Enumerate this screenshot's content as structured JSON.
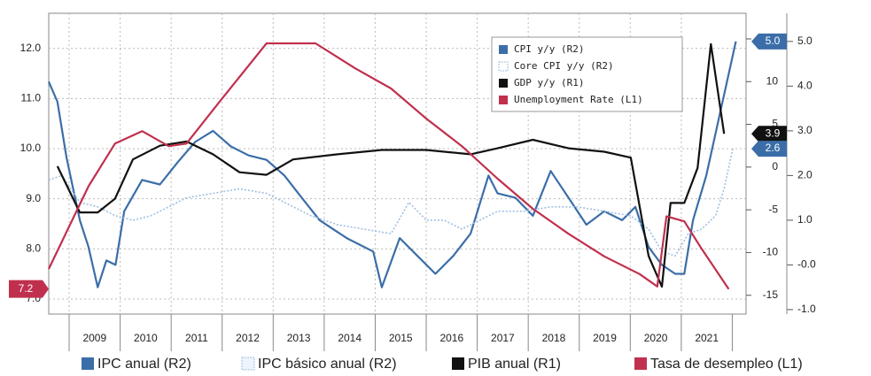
{
  "chart_data": {
    "type": "line",
    "categories": [
      "2009",
      "2010",
      "2011",
      "2012",
      "2013",
      "2014",
      "2015",
      "2016",
      "2017",
      "2018",
      "2019",
      "2020",
      "2021"
    ],
    "xlim": [
      2008.6,
      2022.27
    ],
    "ylim": [
      6.7,
      12.7
    ],
    "yticks": [
      {
        "value": 7,
        "label": "7.0"
      },
      {
        "value": 8,
        "label": "8.0"
      },
      {
        "value": 9,
        "label": "9.0"
      },
      {
        "value": 10,
        "label": "10.0"
      },
      {
        "value": 11,
        "label": "11.0"
      },
      {
        "value": 12,
        "label": "12.0"
      }
    ],
    "y2lim": [
      -17.2,
      18
    ],
    "y2ticks": [
      15,
      10,
      5,
      0,
      -5,
      -10,
      -15
    ],
    "y3lim": [
      -1.1,
      5.63
    ],
    "y3ticks": [
      {
        "value": 5,
        "label": "5.0"
      },
      {
        "value": 4,
        "label": "4.0"
      },
      {
        "value": 3,
        "label": "3.0"
      },
      {
        "value": 2,
        "label": "2.0"
      },
      {
        "value": 1,
        "label": "1.0"
      },
      {
        "value": 0,
        "label": "-0.0"
      },
      {
        "value": -1,
        "label": "-1.0"
      }
    ],
    "grid": true,
    "series": [
      {
        "name": "CPI y/y (R2)",
        "color": "#3b6ea8",
        "axis": "y3",
        "x": [
          2008.6,
          2008.77,
          2008.95,
          2009.21,
          2009.38,
          2009.56,
          2009.73,
          2009.91,
          2010.08,
          2010.43,
          2010.78,
          2011.13,
          2011.47,
          2011.82,
          2012.17,
          2012.52,
          2012.87,
          2013.22,
          2013.56,
          2013.91,
          2014.44,
          2014.96,
          2015.13,
          2015.48,
          2015.83,
          2016.18,
          2016.53,
          2016.87,
          2017.22,
          2017.4,
          2017.75,
          2018.09,
          2018.44,
          2018.79,
          2019.14,
          2019.49,
          2019.84,
          2020.1,
          2020.36,
          2020.62,
          2020.88,
          2021.06,
          2021.23,
          2021.49,
          2021.75,
          2022.07
        ],
        "values": [
          4.1,
          3.65,
          2.4,
          1.0,
          0.4,
          -0.5,
          0.1,
          0.0,
          1.2,
          1.9,
          1.8,
          2.3,
          2.75,
          3.0,
          2.65,
          2.45,
          2.35,
          2.0,
          1.5,
          1.0,
          0.6,
          0.3,
          -0.5,
          0.6,
          0.2,
          -0.2,
          0.2,
          0.7,
          2.0,
          1.6,
          1.5,
          1.1,
          2.1,
          1.5,
          0.9,
          1.2,
          1.0,
          1.3,
          0.4,
          0.0,
          -0.2,
          -0.2,
          1.0,
          2.0,
          3.35,
          5.0
        ]
      },
      {
        "name": "Core CPI y/y (R2)",
        "color": "#9fbfe0",
        "axis": "y3",
        "dash": "2,2",
        "x": [
          2008.6,
          2008.86,
          2009.21,
          2009.56,
          2009.91,
          2010.25,
          2010.6,
          2010.95,
          2011.3,
          2011.82,
          2012.34,
          2012.87,
          2013.22,
          2013.74,
          2014.26,
          2014.78,
          2015.31,
          2015.66,
          2016.0,
          2016.35,
          2016.7,
          2017.05,
          2017.4,
          2017.92,
          2018.44,
          2018.97,
          2019.49,
          2020.01,
          2020.36,
          2020.62,
          2020.88,
          2021.14,
          2021.4,
          2021.67,
          2021.84,
          2022.01
        ],
        "values": [
          1.9,
          2.0,
          1.4,
          1.3,
          1.1,
          1.0,
          1.1,
          1.3,
          1.5,
          1.6,
          1.7,
          1.6,
          1.4,
          1.1,
          0.9,
          0.8,
          0.7,
          1.4,
          1.0,
          1.0,
          0.8,
          1.0,
          1.2,
          1.2,
          1.3,
          1.3,
          1.2,
          1.1,
          0.8,
          0.3,
          0.2,
          0.7,
          0.8,
          1.1,
          1.7,
          2.6
        ]
      },
      {
        "name": "GDP y/y (R1)",
        "color": "#111111",
        "axis": "y2",
        "x": [
          2008.77,
          2009.21,
          2009.56,
          2009.9,
          2010.25,
          2010.78,
          2011.3,
          2011.82,
          2012.34,
          2012.87,
          2013.39,
          2014.26,
          2015.13,
          2016.0,
          2016.87,
          2017.4,
          2018.09,
          2018.79,
          2019.49,
          2020.01,
          2020.36,
          2020.62,
          2020.79,
          2021.06,
          2021.32,
          2021.58,
          2021.84
        ],
        "values": [
          0.1,
          -5.3,
          -5.3,
          -3.7,
          0.9,
          2.5,
          3.0,
          1.5,
          -0.6,
          -0.9,
          0.9,
          1.5,
          2.0,
          2.0,
          1.5,
          2.2,
          3.2,
          2.2,
          1.8,
          1.1,
          -10.4,
          -14.0,
          -4.2,
          -4.2,
          -0.1,
          14.4,
          3.9
        ]
      },
      {
        "name": "Unemployment Rate (L1)",
        "color": "#c0304e",
        "axis": "y",
        "x": [
          2008.6,
          2009.38,
          2009.9,
          2010.43,
          2010.95,
          2011.3,
          2012.0,
          2012.87,
          2013.83,
          2014.61,
          2015.31,
          2016.0,
          2016.7,
          2017.4,
          2018.09,
          2018.79,
          2019.49,
          2020.18,
          2020.53,
          2020.71,
          2021.06,
          2021.4,
          2021.93
        ],
        "values": [
          7.6,
          9.25,
          10.1,
          10.35,
          10.05,
          10.1,
          11.0,
          12.1,
          12.1,
          11.6,
          11.2,
          10.6,
          10.05,
          9.4,
          8.8,
          8.3,
          7.85,
          7.5,
          7.25,
          8.65,
          8.55,
          8.0,
          7.2
        ]
      }
    ],
    "end_labels": [
      {
        "value": 7.2,
        "axis": "y",
        "color": "#c0304e"
      },
      {
        "value": 5.0,
        "label": "5.0",
        "axis": "y3",
        "color": "#3b6ea8"
      },
      {
        "value": 3.9,
        "axis": "y2",
        "color": "#111111"
      },
      {
        "value": 2.6,
        "axis": "y3",
        "color": "#3b6ea8"
      }
    ],
    "bottom_legend": [
      "IPC anual (R2)",
      "IPC básico anual (R2)",
      "PIB anual (R1)",
      "Tasa de desempleo (L1)"
    ]
  }
}
